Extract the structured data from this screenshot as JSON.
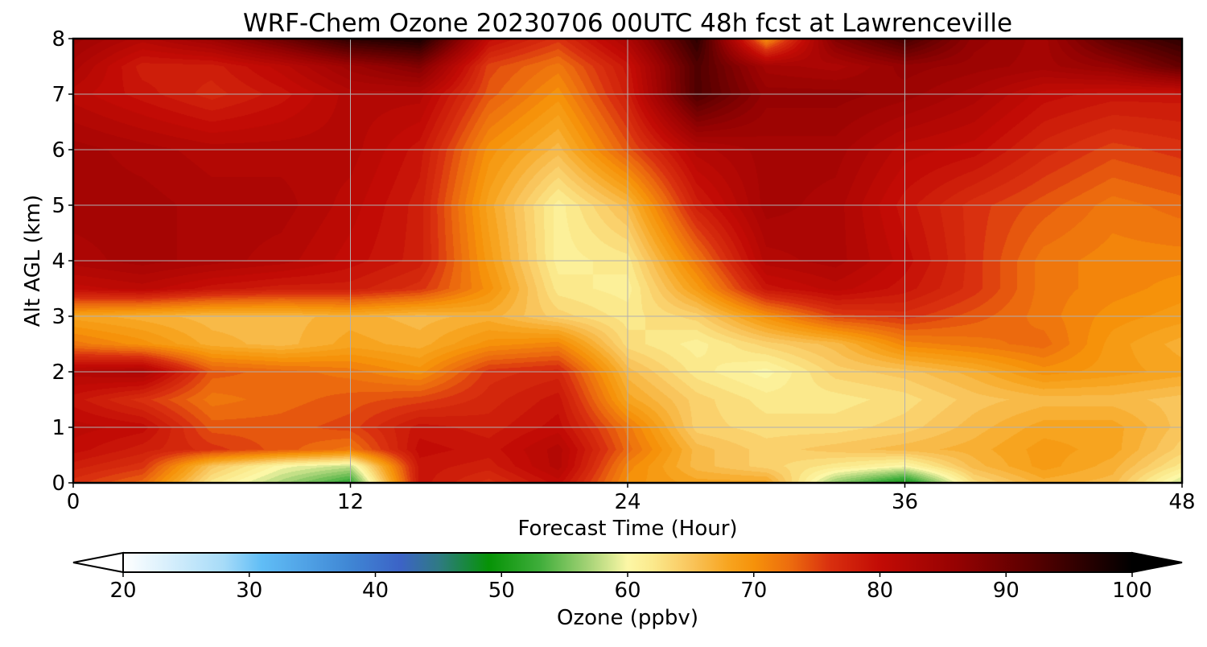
{
  "chart_data": {
    "type": "heatmap",
    "title": "WRF-Chem Ozone  20230706 00UTC 48h fcst at Lawrenceville",
    "xlabel": "Forecast Time (Hour)",
    "ylabel": "Alt AGL (km)",
    "x_ticks": [
      "0",
      "12",
      "24",
      "36",
      "48"
    ],
    "y_ticks": [
      "0",
      "1",
      "2",
      "3",
      "4",
      "5",
      "6",
      "7",
      "8"
    ],
    "xlim": [
      0,
      48
    ],
    "ylim": [
      0,
      8
    ],
    "grid": true,
    "x_hours": [
      0,
      3,
      6,
      9,
      12,
      15,
      18,
      21,
      24,
      27,
      30,
      33,
      36,
      39,
      42,
      45,
      48
    ],
    "y_km": [
      0,
      0.3,
      0.6,
      1,
      1.5,
      2,
      2.5,
      3,
      3.5,
      4,
      5,
      6,
      7,
      7.5,
      8
    ],
    "ozone_ppbv": [
      [
        76,
        73,
        62,
        57,
        52,
        79,
        76,
        80,
        70,
        68,
        68,
        56,
        50,
        63,
        67,
        66,
        58
      ],
      [
        78,
        76,
        65,
        60,
        58,
        79,
        78,
        82,
        71,
        66,
        64,
        62,
        60,
        66,
        69,
        67,
        62
      ],
      [
        80,
        78,
        76,
        74,
        72,
        80,
        79,
        82,
        73,
        66,
        64,
        65,
        66,
        67,
        69,
        68,
        64
      ],
      [
        81,
        80,
        74,
        74,
        75,
        79,
        78,
        80,
        72,
        64,
        63,
        63,
        64,
        66,
        68,
        68,
        65
      ],
      [
        79,
        76,
        72,
        73,
        74,
        75,
        77,
        79,
        68,
        64,
        62,
        62,
        63,
        65,
        66,
        66,
        65
      ],
      [
        82,
        83,
        74,
        73,
        72,
        70,
        76,
        77,
        66,
        62,
        60,
        64,
        65,
        67,
        70,
        69,
        68
      ],
      [
        72,
        70,
        67,
        66,
        68,
        67,
        70,
        71,
        63,
        61,
        64,
        66,
        71,
        72,
        73,
        69,
        67
      ],
      [
        68,
        67,
        66,
        66,
        67,
        66,
        67,
        64,
        62,
        64,
        70,
        75,
        76,
        74,
        72,
        70,
        69
      ],
      [
        80,
        81,
        79,
        78,
        78,
        76,
        70,
        62,
        61,
        69,
        79,
        81,
        79,
        76,
        72,
        71,
        70
      ],
      [
        83,
        84,
        83,
        82,
        80,
        78,
        69,
        61,
        62,
        72,
        82,
        83,
        80,
        76,
        72,
        71,
        71
      ],
      [
        84,
        84,
        83,
        83,
        81,
        78,
        68,
        61,
        66,
        78,
        84,
        83,
        79,
        76,
        74,
        72,
        73
      ],
      [
        84,
        83,
        82,
        82,
        82,
        79,
        70,
        66,
        74,
        82,
        84,
        84,
        81,
        80,
        77,
        75,
        76
      ],
      [
        81,
        79,
        77,
        79,
        82,
        82,
        74,
        70,
        78,
        93,
        86,
        86,
        85,
        83,
        80,
        79,
        79
      ],
      [
        83,
        78,
        78,
        81,
        85,
        88,
        75,
        72,
        79,
        93,
        84,
        83,
        86,
        85,
        84,
        86,
        91
      ],
      [
        85,
        82,
        85,
        90,
        96,
        98,
        80,
        76,
        83,
        96,
        70,
        88,
        94,
        86,
        84,
        92,
        96
      ]
    ],
    "colorbar": {
      "label": "Ozone  (ppbv)",
      "ticks": [
        "20",
        "30",
        "40",
        "50",
        "60",
        "70",
        "80",
        "90",
        "100"
      ],
      "range": [
        20,
        100
      ],
      "extend": "both",
      "stops": [
        [
          20,
          "#ffffff"
        ],
        [
          28,
          "#a6dbf8"
        ],
        [
          31,
          "#60bdf6"
        ],
        [
          38,
          "#3f86d4"
        ],
        [
          42,
          "#3c63c6"
        ],
        [
          45,
          "#2f7a84"
        ],
        [
          49,
          "#069306"
        ],
        [
          53,
          "#3ead3a"
        ],
        [
          57,
          "#a8d478"
        ],
        [
          60,
          "#fcf7a6"
        ],
        [
          62,
          "#fbe98c"
        ],
        [
          65,
          "#f9c55c"
        ],
        [
          68,
          "#f7a41f"
        ],
        [
          70,
          "#f6920a"
        ],
        [
          73,
          "#ec6a0e"
        ],
        [
          76,
          "#d9300f"
        ],
        [
          80,
          "#c20b05"
        ],
        [
          86,
          "#960202"
        ],
        [
          92,
          "#5a0000"
        ],
        [
          100,
          "#000000"
        ]
      ]
    }
  }
}
